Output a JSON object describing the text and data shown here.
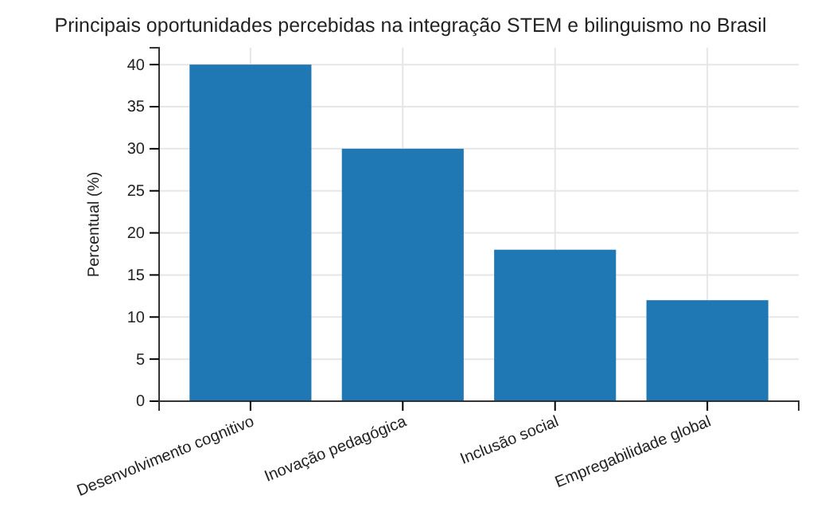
{
  "chart_data": {
    "type": "bar",
    "title": "Principais oportunidades percebidas na integração STEM e bilinguismo no Brasil",
    "ylabel": "Percentual (%)",
    "categories": [
      "Desenvolvimento cognitivo",
      "Inovação pedagógica",
      "Inclusão social",
      "Empregabilidade global"
    ],
    "values": [
      40,
      30,
      18,
      12
    ],
    "color": "#1f77b4",
    "ylim": [
      0,
      42
    ],
    "yticks": [
      0,
      5,
      10,
      15,
      20,
      25,
      30,
      35,
      40
    ],
    "grid": true
  }
}
